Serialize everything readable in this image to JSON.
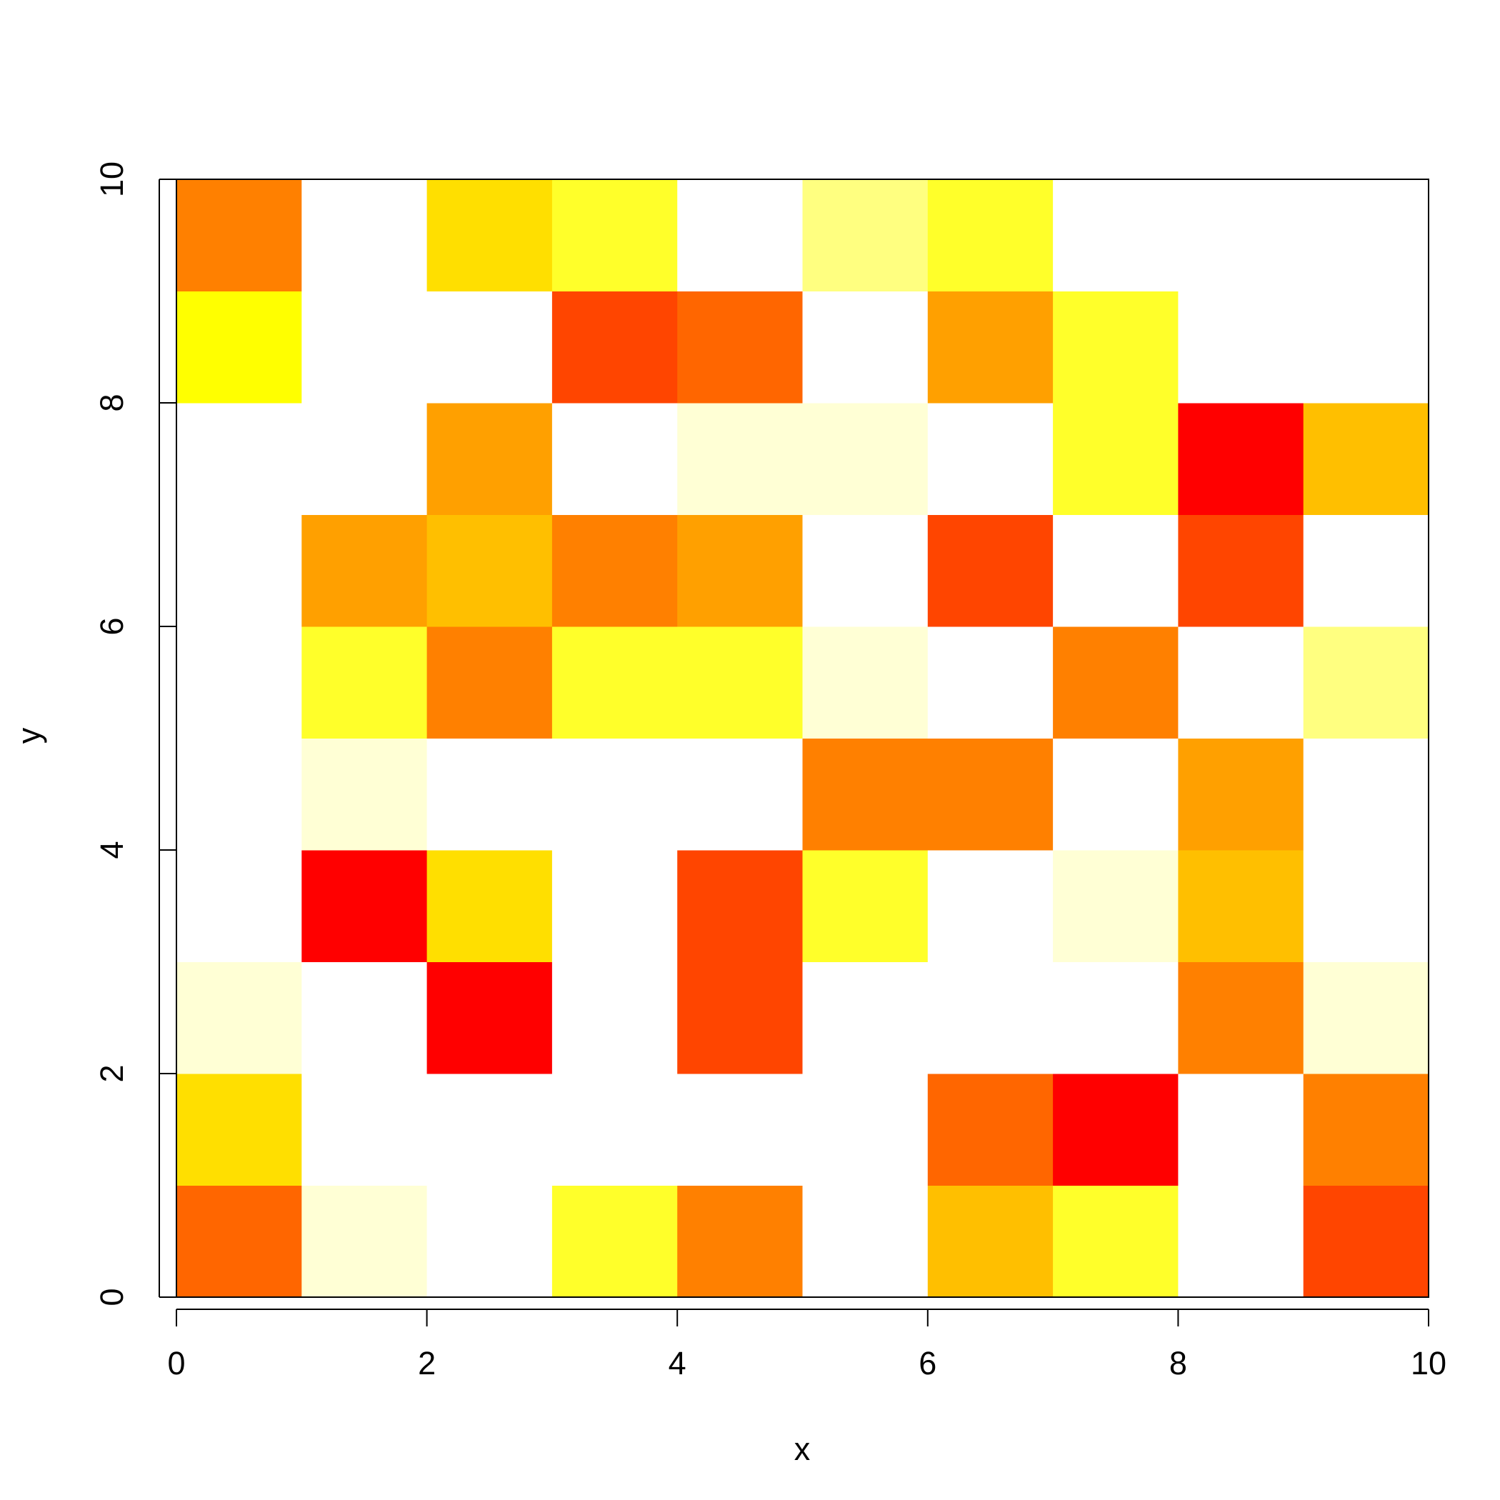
{
  "chart_data": {
    "type": "heatmap",
    "title": "",
    "xlabel": "x",
    "ylabel": "y",
    "xlim": [
      0,
      10
    ],
    "ylim": [
      0,
      10
    ],
    "x_ticks": [
      0,
      2,
      4,
      6,
      8,
      10
    ],
    "y_ticks": [
      0,
      2,
      4,
      6,
      8,
      10
    ],
    "x_tick_labels": [
      "0",
      "2",
      "4",
      "6",
      "8",
      "10"
    ],
    "y_tick_labels": [
      "0",
      "2",
      "4",
      "6",
      "8",
      "10"
    ],
    "grid": false,
    "cell_size": 1,
    "palette": [
      "#FF0000",
      "#FF4500",
      "#FF6600",
      "#FF8000",
      "#FFA000",
      "#FFBF00",
      "#FFDF00",
      "#FFFF00",
      "#FFFF2A",
      "#FFFF80",
      "#FFFFD5",
      "#FFFFFF"
    ],
    "rows_bottom_to_top": [
      [
        "#FF6600",
        "#FFFFD5",
        "#FFFFFF",
        "#FFFF2A",
        "#FF8000",
        "#FFFFFF",
        "#FFBF00",
        "#FFFF2A",
        "#FFFFFF",
        "#FF4500"
      ],
      [
        "#FFDF00",
        "#FFFFFF",
        "#FFFFFF",
        "#FFFFFF",
        "#FFFFFF",
        "#FFFFFF",
        "#FF6600",
        "#FF0000",
        "#FFFFFF",
        "#FF8000"
      ],
      [
        "#FFFFD5",
        "#FFFFFF",
        "#FF0000",
        "#FFFFFF",
        "#FF4500",
        "#FFFFFF",
        "#FFFFFF",
        "#FFFFFF",
        "#FF8000",
        "#FFFFD5"
      ],
      [
        "#FFFFFF",
        "#FF0000",
        "#FFDF00",
        "#FFFFFF",
        "#FF4500",
        "#FFFF2A",
        "#FFFFFF",
        "#FFFFD5",
        "#FFBF00",
        "#FFFFFF"
      ],
      [
        "#FFFFFF",
        "#FFFFD5",
        "#FFFFFF",
        "#FFFFFF",
        "#FFFFFF",
        "#FF8000",
        "#FF8000",
        "#FFFFFF",
        "#FFA000",
        "#FFFFFF"
      ],
      [
        "#FFFFFF",
        "#FFFF2A",
        "#FF8000",
        "#FFFF2A",
        "#FFFF2A",
        "#FFFFD5",
        "#FFFFFF",
        "#FF8000",
        "#FFFFFF",
        "#FFFF80"
      ],
      [
        "#FFFFFF",
        "#FFA000",
        "#FFBF00",
        "#FF8000",
        "#FFA000",
        "#FFFFFF",
        "#FF4500",
        "#FFFFFF",
        "#FF4500",
        "#FFFFFF"
      ],
      [
        "#FFFFFF",
        "#FFFFFF",
        "#FFA000",
        "#FFFFFF",
        "#FFFFD5",
        "#FFFFD5",
        "#FFFFFF",
        "#FFFF2A",
        "#FF0000",
        "#FFBF00"
      ],
      [
        "#FFFF00",
        "#FFFFFF",
        "#FFFFFF",
        "#FF4500",
        "#FF6600",
        "#FFFFFF",
        "#FFA000",
        "#FFFF2A",
        "#FFFFFF",
        "#FFFFFF"
      ],
      [
        "#FF8000",
        "#FFFFFF",
        "#FFDF00",
        "#FFFF2A",
        "#FFFFFF",
        "#FFFF80",
        "#FFFF2A",
        "#FFFFFF",
        "#FFFFFF",
        "#FFFFFF"
      ]
    ]
  }
}
